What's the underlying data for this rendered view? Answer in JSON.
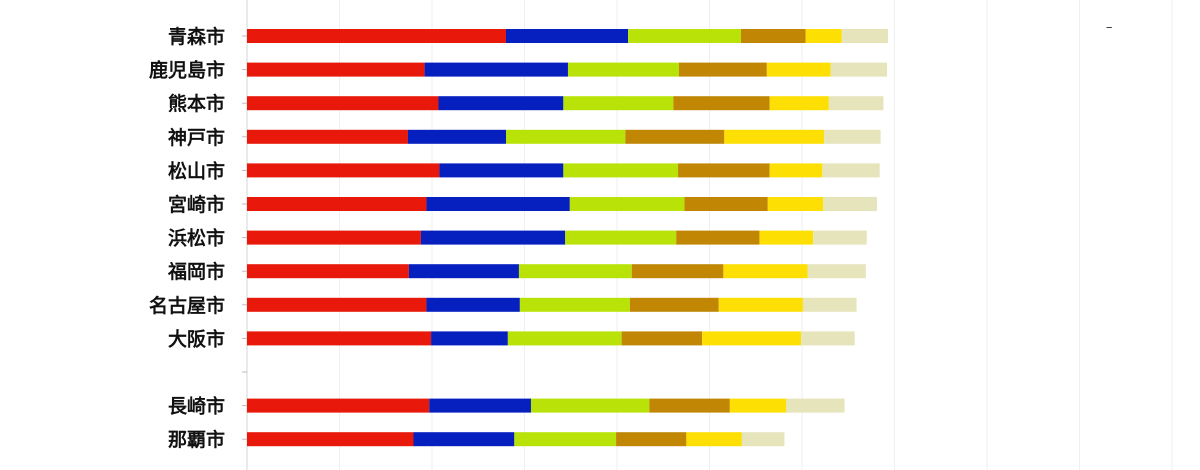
{
  "chart_data": {
    "type": "bar",
    "orientation": "horizontal",
    "stacked": true,
    "title": "",
    "xlabel": "",
    "ylabel": "",
    "categories": [
      "青森市",
      "鹿児島市",
      "熊本市",
      "神戸市",
      "松山市",
      "宮崎市",
      "浜松市",
      "福岡市",
      "名古屋市",
      "大阪市",
      "",
      "長崎市",
      "那覇市"
    ],
    "xlim": [
      0,
      1000
    ],
    "grid": true,
    "legend_text": "–",
    "colors": [
      "#e8180a",
      "#0620c0",
      "#b8e208",
      "#c08604",
      "#fddf04",
      "#e6e4bb"
    ],
    "series": [
      {
        "values": [
          280,
          192,
          207,
          174,
          208,
          194,
          188,
          175,
          194,
          199,
          null,
          197,
          180
        ]
      },
      {
        "values": [
          132,
          155,
          135,
          106,
          134,
          155,
          156,
          119,
          101,
          83,
          null,
          110,
          109
        ]
      },
      {
        "values": [
          122,
          120,
          119,
          129,
          124,
          124,
          120,
          122,
          119,
          123,
          null,
          128,
          110
        ]
      },
      {
        "values": [
          70,
          95,
          104,
          107,
          99,
          90,
          90,
          99,
          96,
          87,
          null,
          87,
          76
        ]
      },
      {
        "values": [
          39,
          69,
          64,
          108,
          57,
          60,
          58,
          91,
          91,
          107,
          null,
          61,
          60
        ]
      },
      {
        "values": [
          50,
          61,
          59,
          61,
          62,
          58,
          58,
          63,
          58,
          58,
          null,
          63,
          46
        ]
      }
    ]
  }
}
